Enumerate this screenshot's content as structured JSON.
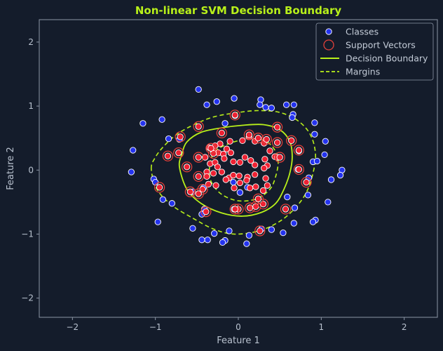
{
  "chart_data": {
    "type": "scatter",
    "title": "Non-linear SVM Decision Boundary",
    "xlabel": "Feature 1",
    "ylabel": "Feature 2",
    "xlim": [
      -2.4,
      2.4
    ],
    "ylim": [
      -2.3,
      2.35
    ],
    "xticks": [
      -2,
      -1,
      0,
      1,
      2
    ],
    "yticks": [
      -2,
      -1,
      0,
      1,
      2
    ],
    "colors": {
      "background": "#141c2b",
      "axis": "#8c96a6",
      "outer_class": "#2433ee",
      "inner_class": "#ee2233",
      "support_ring": "#e0403a",
      "boundary": "#b8f01a",
      "title": "#b8f01a"
    },
    "legend": {
      "position": "upper right",
      "entries": [
        "Classes",
        "Support Vectors",
        "Decision Boundary",
        "Margins"
      ]
    },
    "outer_class_points": [
      [
        -0.48,
        1.26
      ],
      [
        -0.38,
        1.02
      ],
      [
        -0.26,
        1.07
      ],
      [
        -0.05,
        1.12
      ],
      [
        0.27,
        1.1
      ],
      [
        0.26,
        1.02
      ],
      [
        0.33,
        0.98
      ],
      [
        0.4,
        0.97
      ],
      [
        0.58,
        1.02
      ],
      [
        0.66,
        0.87
      ],
      [
        0.67,
        1.02
      ],
      [
        0.65,
        0.82
      ],
      [
        -0.92,
        0.79
      ],
      [
        -1.15,
        0.73
      ],
      [
        -0.71,
        0.48
      ],
      [
        -0.84,
        0.49
      ],
      [
        -0.16,
        0.73
      ],
      [
        -0.04,
        0.85
      ],
      [
        0.92,
        0.74
      ],
      [
        0.92,
        0.56
      ],
      [
        1.05,
        0.45
      ],
      [
        1.04,
        0.24
      ],
      [
        0.9,
        0.13
      ],
      [
        0.95,
        0.14
      ],
      [
        1.25,
        0.0
      ],
      [
        1.23,
        -0.08
      ],
      [
        1.12,
        -0.15
      ],
      [
        -1.27,
        0.31
      ],
      [
        -1.29,
        -0.03
      ],
      [
        -1.02,
        -0.14
      ],
      [
        -1.0,
        -0.19
      ],
      [
        -0.91,
        -0.46
      ],
      [
        -0.8,
        -0.52
      ],
      [
        -0.97,
        -0.81
      ],
      [
        -0.41,
        -0.61
      ],
      [
        -0.44,
        -0.69
      ],
      [
        -0.55,
        -0.91
      ],
      [
        -0.37,
        -1.09
      ],
      [
        -0.44,
        -1.09
      ],
      [
        -0.16,
        -1.1
      ],
      [
        -0.19,
        -1.13
      ],
      [
        0.1,
        -1.15
      ],
      [
        -0.11,
        -0.95
      ],
      [
        -0.29,
        -0.99
      ],
      [
        0.13,
        -1.02
      ],
      [
        0.28,
        -0.92
      ],
      [
        0.4,
        -0.93
      ],
      [
        0.54,
        -0.98
      ],
      [
        0.67,
        -0.83
      ],
      [
        0.68,
        -0.59
      ],
      [
        0.59,
        -0.42
      ],
      [
        0.84,
        -0.39
      ],
      [
        0.85,
        -0.12
      ],
      [
        0.72,
        0.01
      ],
      [
        0.73,
        0.3
      ],
      [
        0.93,
        -0.78
      ],
      [
        0.9,
        -0.81
      ],
      [
        1.08,
        -0.5
      ],
      [
        -0.55,
        -0.34
      ],
      [
        -0.42,
        -0.28
      ],
      [
        -0.06,
        -0.19
      ],
      [
        0.02,
        -0.35
      ],
      [
        0.11,
        -0.27
      ],
      [
        -0.05,
        -0.61
      ]
    ],
    "inner_class_points": [
      [
        -0.1,
        0.45
      ],
      [
        -0.22,
        0.41
      ],
      [
        -0.28,
        0.38
      ],
      [
        -0.35,
        0.35
      ],
      [
        -0.3,
        0.29
      ],
      [
        -0.24,
        0.27
      ],
      [
        -0.18,
        0.25
      ],
      [
        -0.14,
        0.33
      ],
      [
        -0.09,
        0.27
      ],
      [
        0.05,
        0.46
      ],
      [
        0.13,
        0.52
      ],
      [
        0.2,
        0.45
      ],
      [
        0.31,
        0.42
      ],
      [
        0.38,
        0.3
      ],
      [
        0.44,
        0.21
      ],
      [
        -0.4,
        0.2
      ],
      [
        -0.34,
        0.1
      ],
      [
        -0.28,
        0.12
      ],
      [
        -0.25,
        0.05
      ],
      [
        -0.17,
        0.18
      ],
      [
        -0.06,
        0.13
      ],
      [
        0.02,
        0.12
      ],
      [
        0.08,
        0.2
      ],
      [
        0.15,
        0.15
      ],
      [
        0.2,
        0.08
      ],
      [
        0.32,
        0.17
      ],
      [
        0.35,
        0.07
      ],
      [
        0.31,
        0.03
      ],
      [
        -0.38,
        -0.03
      ],
      [
        -0.38,
        -0.1
      ],
      [
        -0.3,
        -0.05
      ],
      [
        -0.2,
        -0.03
      ],
      [
        -0.11,
        -0.12
      ],
      [
        -0.06,
        -0.08
      ],
      [
        0.01,
        -0.09
      ],
      [
        0.11,
        -0.11
      ],
      [
        0.2,
        -0.07
      ],
      [
        0.33,
        -0.13
      ],
      [
        0.35,
        -0.24
      ],
      [
        -0.36,
        -0.22
      ],
      [
        -0.27,
        -0.24
      ],
      [
        -0.05,
        -0.28
      ],
      [
        0.02,
        -0.2
      ],
      [
        0.1,
        -0.16
      ],
      [
        0.14,
        -0.28
      ],
      [
        0.21,
        -0.26
      ],
      [
        0.24,
        -0.45
      ],
      [
        0.3,
        -0.32
      ],
      [
        0.47,
        0.2
      ],
      [
        -0.15,
        -0.15
      ]
    ],
    "support_vectors": [
      [
        -0.7,
        0.52
      ],
      [
        -0.48,
        0.68
      ],
      [
        -0.04,
        0.86
      ],
      [
        -0.2,
        0.58
      ],
      [
        0.13,
        0.55
      ],
      [
        0.24,
        0.5
      ],
      [
        0.34,
        0.48
      ],
      [
        0.47,
        0.43
      ],
      [
        0.47,
        0.67
      ],
      [
        0.64,
        0.46
      ],
      [
        0.5,
        0.2
      ],
      [
        -0.85,
        0.22
      ],
      [
        -0.72,
        0.27
      ],
      [
        -0.48,
        0.2
      ],
      [
        -0.62,
        0.05
      ],
      [
        -0.48,
        -0.1
      ],
      [
        -0.3,
        0.26
      ],
      [
        -0.43,
        -0.3
      ],
      [
        -0.58,
        -0.34
      ],
      [
        -0.48,
        -0.37
      ],
      [
        -0.95,
        -0.27
      ],
      [
        -0.39,
        -0.65
      ],
      [
        0.0,
        -0.61
      ],
      [
        0.14,
        -0.59
      ],
      [
        0.21,
        -0.57
      ],
      [
        0.3,
        -0.53
      ],
      [
        0.24,
        -0.45
      ],
      [
        0.57,
        -0.61
      ],
      [
        0.26,
        -0.95
      ],
      [
        -0.33,
        0.34
      ],
      [
        0.82,
        -0.19
      ],
      [
        0.73,
        0.31
      ],
      [
        0.73,
        0.01
      ],
      [
        -0.04,
        -0.61
      ]
    ],
    "decision_boundary": [
      [
        -0.71,
        0.05
      ],
      [
        -0.68,
        0.25
      ],
      [
        -0.62,
        0.44
      ],
      [
        -0.45,
        0.59
      ],
      [
        -0.2,
        0.66
      ],
      [
        0.05,
        0.7
      ],
      [
        0.3,
        0.71
      ],
      [
        0.5,
        0.63
      ],
      [
        0.62,
        0.45
      ],
      [
        0.65,
        0.2
      ],
      [
        0.62,
        -0.05
      ],
      [
        0.55,
        -0.3
      ],
      [
        0.45,
        -0.52
      ],
      [
        0.28,
        -0.66
      ],
      [
        0.05,
        -0.72
      ],
      [
        -0.2,
        -0.67
      ],
      [
        -0.45,
        -0.52
      ],
      [
        -0.62,
        -0.3
      ],
      [
        -0.71,
        0.05
      ]
    ],
    "margins": [
      [
        [
          -1.05,
          0.02
        ],
        [
          -1.0,
          0.2
        ],
        [
          -0.9,
          0.37
        ],
        [
          -0.75,
          0.55
        ],
        [
          -0.55,
          0.7
        ],
        [
          -0.3,
          0.83
        ],
        [
          0.0,
          0.9
        ],
        [
          0.25,
          0.93
        ],
        [
          0.5,
          0.9
        ],
        [
          0.72,
          0.77
        ],
        [
          0.87,
          0.55
        ],
        [
          0.93,
          0.25
        ],
        [
          0.9,
          -0.05
        ],
        [
          0.82,
          -0.35
        ],
        [
          0.68,
          -0.6
        ],
        [
          0.5,
          -0.8
        ],
        [
          0.25,
          -0.95
        ],
        [
          -0.05,
          -1.0
        ],
        [
          -0.3,
          -0.92
        ],
        [
          -0.55,
          -0.75
        ],
        [
          -0.8,
          -0.55
        ],
        [
          -0.98,
          -0.3
        ],
        [
          -1.05,
          0.02
        ]
      ],
      [
        [
          -0.35,
          -0.02
        ],
        [
          -0.33,
          0.15
        ],
        [
          -0.28,
          0.3
        ],
        [
          -0.1,
          0.42
        ],
        [
          0.1,
          0.48
        ],
        [
          0.3,
          0.47
        ],
        [
          0.42,
          0.35
        ],
        [
          0.48,
          0.15
        ],
        [
          0.45,
          -0.1
        ],
        [
          0.38,
          -0.3
        ],
        [
          0.22,
          -0.45
        ],
        [
          0.0,
          -0.48
        ],
        [
          -0.2,
          -0.38
        ],
        [
          -0.32,
          -0.2
        ],
        [
          -0.35,
          -0.02
        ]
      ]
    ]
  }
}
